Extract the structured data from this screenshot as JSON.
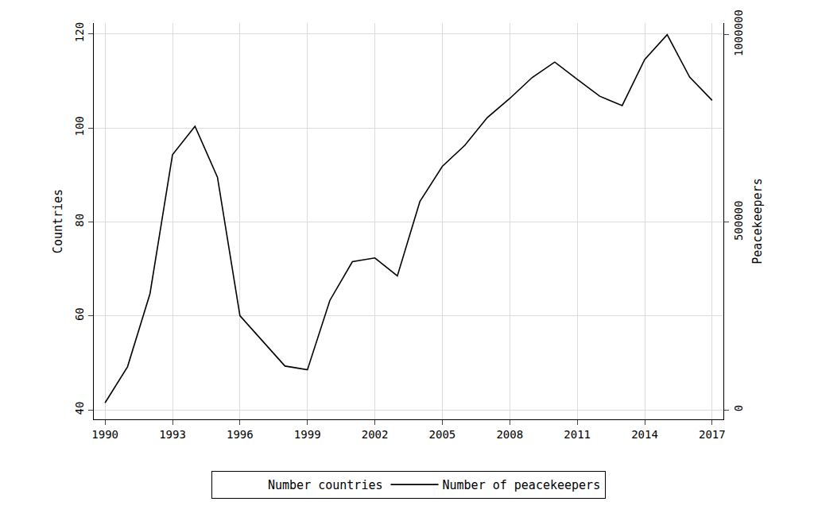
{
  "chart_data": {
    "type": "line",
    "x": [
      1990,
      1991,
      1992,
      1993,
      1994,
      1995,
      1996,
      1997,
      1998,
      1999,
      2000,
      2001,
      2002,
      2003,
      2004,
      2005,
      2006,
      2007,
      2008,
      2009,
      2010,
      2011,
      2012,
      2013,
      2014,
      2015,
      2016,
      2017
    ],
    "series": [
      {
        "name": "Number countries",
        "color": "#ffffff",
        "line_style": "solid",
        "values": [
          41.5,
          49.2,
          64.7,
          94.3,
          100.3,
          89.5,
          60,
          54.8,
          49.3,
          48.5,
          63.3,
          71.5,
          72.3,
          68.5,
          84.3,
          91.8,
          96.3,
          102.2,
          106.2,
          110.7,
          114,
          110.3,
          106.7,
          104.7,
          114.5,
          119.8,
          110.8,
          105.8
        ]
      },
      {
        "name": "Number of peacekeepers",
        "color": "#000000",
        "line_style": "solid",
        "axis": "y2",
        "values": [
          19000,
          115000,
          310000,
          680000,
          756000,
          620000,
          251000,
          185000,
          117000,
          107000,
          292000,
          395000,
          405000,
          357000,
          555000,
          649000,
          705000,
          779000,
          830000,
          886000,
          927000,
          881000,
          836000,
          811000,
          934000,
          1000000,
          887000,
          825000
        ]
      }
    ],
    "y_label": "Countries",
    "y2_label": "Peacekeepers",
    "xlim": [
      1989.5,
      2017.5
    ],
    "xticks": [
      1990,
      1993,
      1996,
      1999,
      2002,
      2005,
      2008,
      2011,
      2014,
      2017
    ],
    "ylim": [
      38,
      122.3
    ],
    "yticks": [
      40,
      60,
      80,
      100,
      120
    ],
    "y2lim": [
      -25000,
      1031000
    ],
    "y2ticks": [
      0,
      500000,
      1000000
    ],
    "grid": true,
    "legend": "bottom",
    "marker": "none"
  }
}
